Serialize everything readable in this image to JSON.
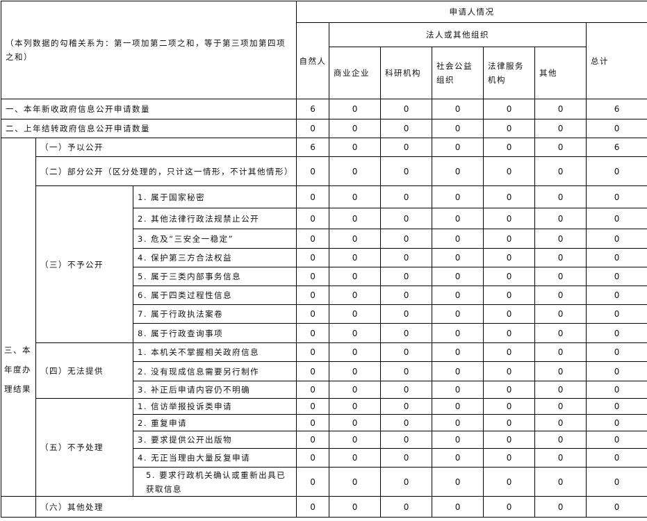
{
  "header": {
    "note": "（本列数据的勾稽关系为：第一项加第二项之和，等于第三项加第四项之和）",
    "applicant": "申请人情况",
    "natural_person": "自然人",
    "legal_org": "法人或其他组织",
    "total": "总计",
    "sub_columns": [
      "商业企业",
      "科研机构",
      "社会公益组织",
      "法律服务机构",
      "其他"
    ]
  },
  "rows_top": [
    {
      "label": "一、本年新收政府信息公开申请数量",
      "values": [
        6,
        0,
        0,
        0,
        0,
        0,
        6
      ]
    },
    {
      "label": "二、上年结转政府信息公开申请数量",
      "values": [
        0,
        0,
        0,
        0,
        0,
        0,
        0
      ]
    }
  ],
  "section3": {
    "label": "三、本年度办理结果",
    "groups": [
      {
        "label": "（一）予以公开",
        "values": [
          6,
          0,
          0,
          0,
          0,
          0,
          6
        ]
      },
      {
        "label": "（二）部分公开（区分处理的，只计这一情形，不计其他情形）",
        "values": [
          0,
          0,
          0,
          0,
          0,
          0,
          0
        ]
      },
      {
        "label": "（三）不予公开",
        "items": [
          {
            "label": "1. 属于国家秘密",
            "values": [
              0,
              0,
              0,
              0,
              0,
              0,
              0
            ]
          },
          {
            "label": "2. 其他法律行政法规禁止公开",
            "values": [
              0,
              0,
              0,
              0,
              0,
              0,
              0
            ]
          },
          {
            "label": "3. 危及“三安全一稳定”",
            "values": [
              0,
              0,
              0,
              0,
              0,
              0,
              0
            ]
          },
          {
            "label": "4. 保护第三方合法权益",
            "values": [
              0,
              0,
              0,
              0,
              0,
              0,
              0
            ]
          },
          {
            "label": "5. 属于三类内部事务信息",
            "values": [
              0,
              0,
              0,
              0,
              0,
              0,
              0
            ]
          },
          {
            "label": "6. 属于四类过程性信息",
            "values": [
              0,
              0,
              0,
              0,
              0,
              0,
              0
            ]
          },
          {
            "label": "7. 属于行政执法案卷",
            "values": [
              0,
              0,
              0,
              0,
              0,
              0,
              0
            ]
          },
          {
            "label": "8. 属于行政查询事项",
            "values": [
              0,
              0,
              0,
              0,
              0,
              0,
              0
            ]
          }
        ]
      },
      {
        "label": "（四）无法提供",
        "items": [
          {
            "label": "1. 本机关不掌握相关政府信息",
            "values": [
              0,
              0,
              0,
              0,
              0,
              0,
              0
            ]
          },
          {
            "label": "2. 没有现成信息需要另行制作",
            "values": [
              0,
              0,
              0,
              0,
              0,
              0,
              0
            ]
          },
          {
            "label": "3. 补正后申请内容仍不明确",
            "values": [
              0,
              0,
              0,
              0,
              0,
              0,
              0
            ]
          }
        ]
      },
      {
        "label": "（五）不予处理",
        "items": [
          {
            "label": "1. 信访举报投诉类申请",
            "values": [
              0,
              0,
              0,
              0,
              0,
              0,
              0
            ]
          },
          {
            "label": "2. 重复申请",
            "values": [
              0,
              0,
              0,
              0,
              0,
              0,
              0
            ]
          },
          {
            "label": "3. 要求提供公开出版物",
            "values": [
              0,
              0,
              0,
              0,
              0,
              0,
              0
            ]
          },
          {
            "label": "4. 无正当理由大量反复申请",
            "values": [
              0,
              0,
              0,
              0,
              0,
              0,
              0
            ]
          },
          {
            "label": "5. 要求行政机关确认或重新出具已获取信息",
            "values": [
              0,
              0,
              0,
              0,
              0,
              0,
              0
            ]
          }
        ]
      }
    ],
    "other": {
      "label": "（六）其他处理",
      "values": [
        0,
        0,
        0,
        0,
        0,
        0,
        0
      ]
    }
  }
}
